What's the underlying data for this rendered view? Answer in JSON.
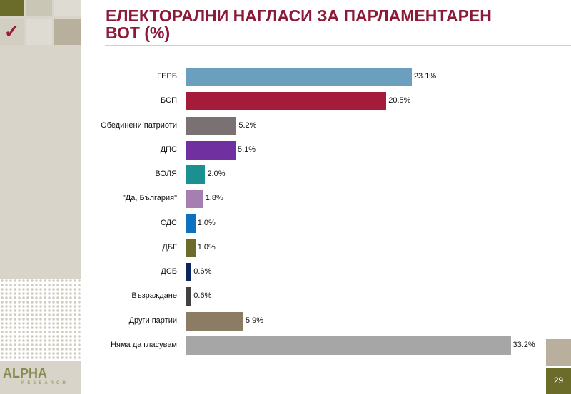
{
  "header": {
    "title_line1": "ЕЛЕКТОРАЛНИ НАГЛАСИ ЗА ПАРЛАМЕНТАРЕН",
    "title_line2": "ВОТ (%)"
  },
  "logo": {
    "name": "ALPHA",
    "sub": "RESEARCH"
  },
  "footer": {
    "page_number": "29"
  },
  "colors": {
    "title": "#8b1a3a",
    "sidebar": "#d8d4c9",
    "accent": "#6b6b2a"
  },
  "chart_data": {
    "type": "bar",
    "orientation": "horizontal",
    "title": "ЕЛЕКТОРАЛНИ НАГЛАСИ ЗА ПАРЛАМЕНТАРЕН ВОТ (%)",
    "categories": [
      "ГЕРБ",
      "БСП",
      "Обединени патриоти",
      "ДПС",
      "ВОЛЯ",
      "\"Да, България\"",
      "СДС",
      "ДБГ",
      "ДСБ",
      "Възраждане",
      "Други партии",
      "Няма да гласувам"
    ],
    "values": [
      23.1,
      20.5,
      5.2,
      5.1,
      2.0,
      1.8,
      1.0,
      1.0,
      0.6,
      0.6,
      5.9,
      33.2
    ],
    "labels": [
      "23.1%",
      "20.5%",
      "5.2%",
      "5.1%",
      "2.0%",
      "1.8%",
      "1.0%",
      "1.0%",
      "0.6%",
      "0.6%",
      "5.9%",
      "33.2%"
    ],
    "bar_colors": [
      "#6a9fbd",
      "#a51c3b",
      "#7a7173",
      "#7030a0",
      "#1a9090",
      "#a57fb0",
      "#1070c0",
      "#6b6b2a",
      "#0a2560",
      "#404040",
      "#8b7d63",
      "#a6a6a6"
    ],
    "grid": false,
    "legend": "none"
  }
}
